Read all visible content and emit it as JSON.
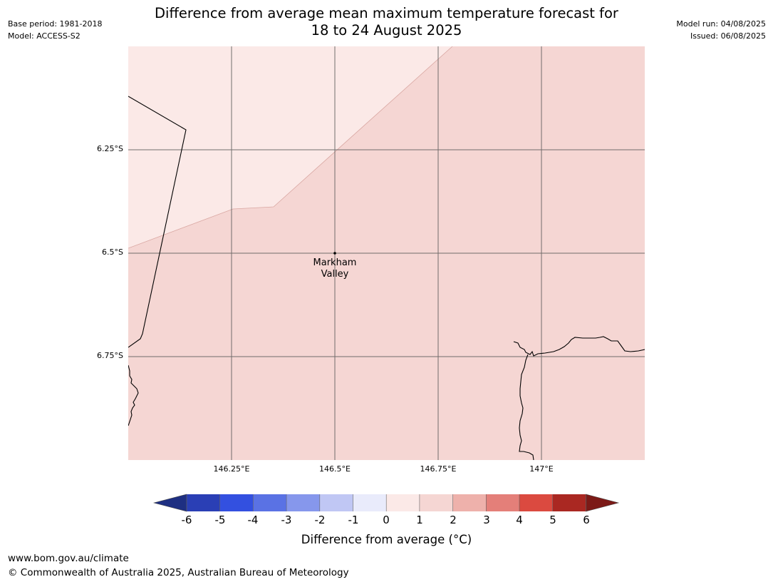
{
  "header": {
    "base_period": "Base period: 1981-2018",
    "model": "Model: ACCESS-S2",
    "model_run": "Model run: 04/08/2025",
    "issued": "Issued: 06/08/2025",
    "title_line1": "Difference from average mean maximum temperature forecast for",
    "title_line2": "18 to 24 August 2025"
  },
  "map": {
    "lat_labels": [
      "6.25°S",
      "6.5°S",
      "6.75°S"
    ],
    "lon_labels": [
      "146.25°E",
      "146.5°E",
      "146.75°E",
      "147°E"
    ],
    "location": {
      "name_line1": "Markham",
      "name_line2": "Valley"
    },
    "colors": {
      "zone_0_to_1": "#fbe9e7",
      "zone_1_to_2": "#f5d6d3",
      "gridline": "#5a5a5a",
      "coastline": "#000000"
    }
  },
  "colorbar": {
    "ticks": [
      "-6",
      "-5",
      "-4",
      "-3",
      "-2",
      "-1",
      "0",
      "1",
      "2",
      "3",
      "4",
      "5",
      "6"
    ],
    "colors": [
      "#1e2f82",
      "#2a3fb5",
      "#3350e0",
      "#5a72e4",
      "#8697ec",
      "#c0c7f4",
      "#e9ebfb",
      "#fbe9e7",
      "#f5d6d3",
      "#eeb1ab",
      "#e47f79",
      "#db4a40",
      "#aa2822",
      "#7c1a17"
    ],
    "label": "Difference from average (°C)"
  },
  "footer": {
    "website": "www.bom.gov.au/climate",
    "copyright": "© Commonwealth of Australia 2025, Australian Bureau of Meteorology"
  }
}
